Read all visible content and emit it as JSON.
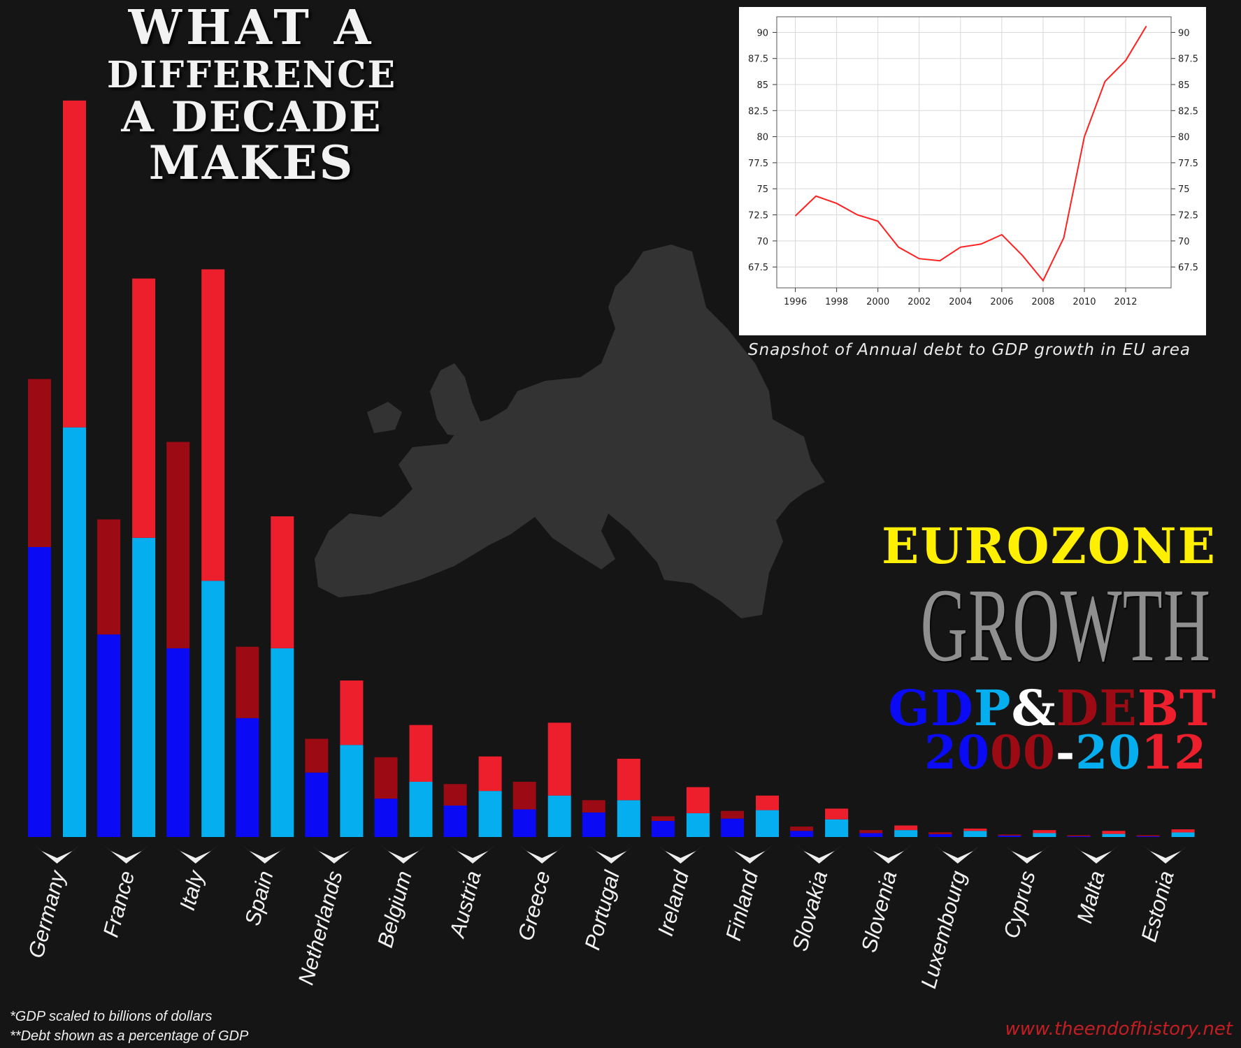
{
  "headline": {
    "line1": "WHAT A",
    "line2": "DIFFERENCE",
    "line3": "A DECADE",
    "line4": "MAKES"
  },
  "legend": {
    "eurozone": "EUROZONE",
    "growth": "GROWTH",
    "gdp_g": "GD",
    "gdp_p": "P",
    "amp": "&",
    "debt_de": "DE",
    "debt_bt": "BT",
    "year_2": "2",
    "year_0": "0",
    "year_00": "00",
    "dash": "-",
    "year_20": "20",
    "year_12": "12"
  },
  "footnotes": {
    "gdp": "*GDP scaled to billions of dollars",
    "debt": "**Debt shown as a percentage of GDP"
  },
  "credit": "www.theendofhistory.net",
  "inset_caption": "Snapshot of Annual debt to GDP growth in EU area",
  "colors": {
    "gdp_2000": "#0a0af5",
    "debt_2000": "#9c0b14",
    "gdp_2012": "#05aeee",
    "debt_2012": "#ee1f2c",
    "inset_line": "#ff2020",
    "eurozone": "#ffef00",
    "growth": "#8f8f8f"
  },
  "chart_data": [
    {
      "type": "bar",
      "stacked": true,
      "categories": [
        "Germany",
        "France",
        "Italy",
        "Spain",
        "Netherlands",
        "Belgium",
        "Austria",
        "Greece",
        "Portugal",
        "Ireland",
        "Finland",
        "Slovakia",
        "Slovenia",
        "Luxembourg",
        "Cyprus",
        "Malta",
        "Estonia"
      ],
      "series": [
        {
          "name": "GDP 2000",
          "values": [
            1890,
            1320,
            1230,
            775,
            420,
            250,
            205,
            180,
            160,
            105,
            120,
            40,
            25,
            18,
            9,
            5,
            5
          ]
        },
        {
          "name": "Debt 2000",
          "values": [
            1095,
            750,
            1345,
            465,
            220,
            270,
            140,
            180,
            80,
            30,
            50,
            28,
            20,
            13,
            7,
            7,
            7
          ]
        },
        {
          "name": "GDP 2012",
          "values": [
            2670,
            1950,
            1670,
            1230,
            600,
            360,
            300,
            270,
            240,
            155,
            175,
            115,
            45,
            40,
            25,
            20,
            30
          ]
        },
        {
          "name": "Debt 2012",
          "values": [
            2130,
            1690,
            2030,
            860,
            420,
            370,
            225,
            475,
            270,
            170,
            95,
            70,
            30,
            15,
            20,
            20,
            20
          ]
        }
      ]
    },
    {
      "type": "line",
      "x": [
        1996,
        1997,
        1998,
        1999,
        2000,
        2001,
        2002,
        2003,
        2004,
        2005,
        2006,
        2007,
        2008,
        2009,
        2010,
        2011,
        2012,
        2013
      ],
      "series": [
        {
          "values": [
            72.4,
            74.3,
            73.6,
            72.5,
            71.9,
            69.4,
            68.3,
            68.1,
            69.4,
            69.7,
            70.6,
            68.6,
            66.2,
            70.3,
            80.0,
            85.3,
            87.3,
            90.6
          ]
        }
      ],
      "x_ticks": [
        1996,
        1998,
        2000,
        2002,
        2004,
        2006,
        2008,
        2010,
        2012
      ],
      "y_ticks": [
        67.5,
        70,
        72.5,
        75,
        77.5,
        80,
        82.5,
        85,
        87.5,
        90
      ],
      "ylim": [
        65.5,
        91.5
      ],
      "xlim": [
        1995.1,
        2014.2
      ],
      "grid": true
    }
  ]
}
